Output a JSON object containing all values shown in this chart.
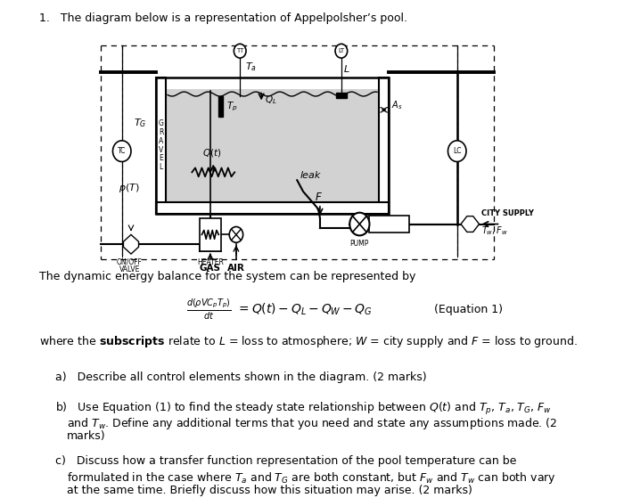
{
  "title": "1.   The diagram below is a representation of Appelpolsher’s pool.",
  "bg_color": "#ffffff",
  "equation_label": "(Equation 1)",
  "dynamic_line": "The dynamic energy balance for the system can be represented by"
}
